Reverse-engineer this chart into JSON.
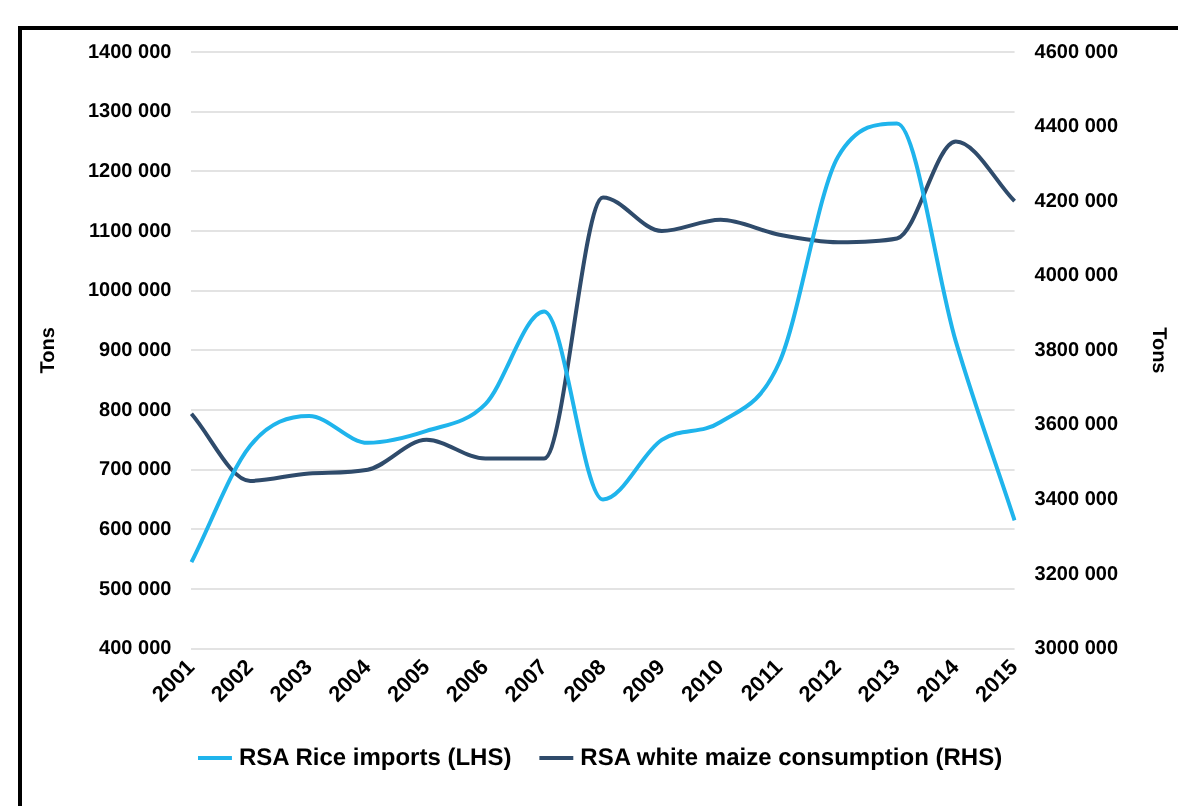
{
  "chart_data": {
    "type": "line",
    "ylabel": "Tons",
    "y2label": "Tons",
    "categories": [
      "2001",
      "2002",
      "2003",
      "2004",
      "2005",
      "2006",
      "2007",
      "2008",
      "2009",
      "2010",
      "2011",
      "2012",
      "2013",
      "2014",
      "2015"
    ],
    "series": [
      {
        "name": "RSA Rice imports (LHS)",
        "color": "#1fb4ec",
        "values": [
          545000,
          740000,
          790000,
          745000,
          765000,
          810000,
          965000,
          650000,
          750000,
          780000,
          880000,
          1225000,
          1280000,
          915000,
          615000
        ]
      },
      {
        "name": "RSA white maize consumption (RHS)",
        "color": "#2f4b6b",
        "axis": "y2",
        "values": [
          3630000,
          3450000,
          3470000,
          3480000,
          3560000,
          3510000,
          3510000,
          4210000,
          4120000,
          4150000,
          4110000,
          4090000,
          4100000,
          4360000,
          4200000
        ]
      }
    ],
    "ylim": [
      400000,
      1400000
    ],
    "yticks": [
      {
        "value": 400000,
        "label": "400 000"
      },
      {
        "value": 500000,
        "label": "500 000"
      },
      {
        "value": 600000,
        "label": "600 000"
      },
      {
        "value": 700000,
        "label": "700 000"
      },
      {
        "value": 800000,
        "label": "800 000"
      },
      {
        "value": 900000,
        "label": "900 000"
      },
      {
        "value": 1000000,
        "label": "1000 000"
      },
      {
        "value": 1100000,
        "label": "1100 000"
      },
      {
        "value": 1200000,
        "label": "1200 000"
      },
      {
        "value": 1300000,
        "label": "1300 000"
      },
      {
        "value": 1400000,
        "label": "1400 000"
      }
    ],
    "y2lim": [
      3000000,
      4600000
    ],
    "y2ticks": [
      {
        "value": 3000000,
        "label": "3000 000"
      },
      {
        "value": 3200000,
        "label": "3200 000"
      },
      {
        "value": 3400000,
        "label": "3400 000"
      },
      {
        "value": 3600000,
        "label": "3600 000"
      },
      {
        "value": 3800000,
        "label": "3800 000"
      },
      {
        "value": 4000000,
        "label": "4000 000"
      },
      {
        "value": 4200000,
        "label": "4200 000"
      },
      {
        "value": 4400000,
        "label": "4400 000"
      },
      {
        "value": 4600000,
        "label": "4600 000"
      }
    ],
    "grid": "y",
    "legend": "bottom",
    "marker": "none",
    "line_style": "solid"
  }
}
